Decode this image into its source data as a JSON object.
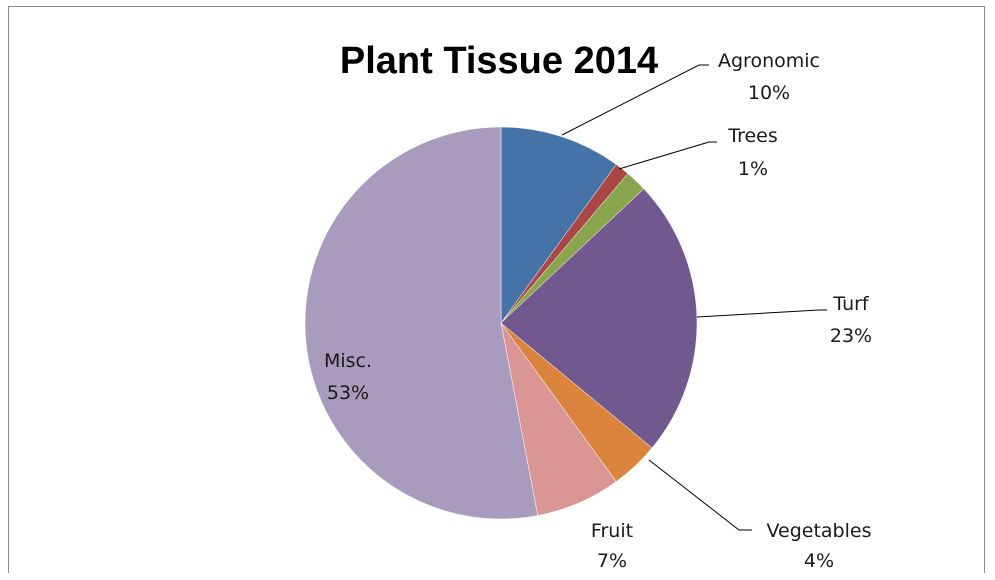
{
  "chart_data": {
    "type": "pie",
    "title": "Plant Tissue 2014",
    "slices": [
      {
        "name": "Agronomic",
        "value": 10,
        "percent_label": "10%",
        "color": "#4572A7"
      },
      {
        "name": "Trees",
        "value": 1.2,
        "percent_label": "1%",
        "color": "#AA4643"
      },
      {
        "name": "",
        "value": 1.8,
        "percent_label": "",
        "color": "#89A54E"
      },
      {
        "name": "Turf",
        "value": 23,
        "percent_label": "23%",
        "color": "#71588F"
      },
      {
        "name": "Vegetables",
        "value": 4,
        "percent_label": "4%",
        "color": "#DB843D"
      },
      {
        "name": "Fruit",
        "value": 7,
        "percent_label": "7%",
        "color": "#D99694"
      },
      {
        "name": "Misc.",
        "value": 53,
        "percent_label": "53%",
        "color": "#A99BBD"
      }
    ],
    "start_angle": "12 o'clock",
    "direction": "clockwise",
    "legend": "none"
  }
}
